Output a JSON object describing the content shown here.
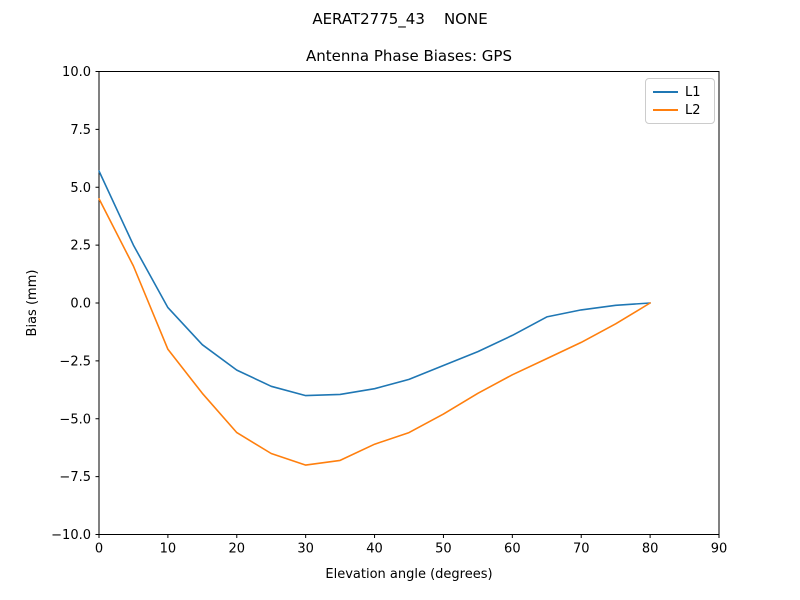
{
  "chart_data": {
    "type": "line",
    "title": "AERAT2775_43    NONE",
    "subtitle": "Antenna Phase Biases: GPS",
    "xlabel": "Elevation angle (degrees)",
    "ylabel": "Bias (mm)",
    "xlim": [
      0,
      90
    ],
    "ylim": [
      -10,
      10
    ],
    "xticks": [
      0,
      10,
      20,
      30,
      40,
      50,
      60,
      70,
      80,
      90
    ],
    "yticks": [
      -10.0,
      -7.5,
      -5.0,
      -2.5,
      0.0,
      2.5,
      5.0,
      7.5,
      10.0
    ],
    "grid": false,
    "legend_position": "upper right",
    "x": [
      0,
      5,
      10,
      15,
      20,
      25,
      30,
      35,
      40,
      45,
      50,
      55,
      60,
      65,
      70,
      75,
      80
    ],
    "series": [
      {
        "name": "L1",
        "color": "#1f77b4",
        "values": [
          5.7,
          2.5,
          -0.2,
          -1.8,
          -2.9,
          -3.6,
          -4.0,
          -3.95,
          -3.7,
          -3.3,
          -2.7,
          -2.1,
          -1.4,
          -0.6,
          -0.3,
          -0.1,
          0.0
        ]
      },
      {
        "name": "L2",
        "color": "#ff7f0e",
        "values": [
          4.5,
          1.6,
          -2.0,
          -3.9,
          -5.6,
          -6.5,
          -7.0,
          -6.8,
          -6.1,
          -5.6,
          -4.8,
          -3.9,
          -3.1,
          -2.4,
          -1.7,
          -0.9,
          0.0
        ]
      }
    ]
  }
}
